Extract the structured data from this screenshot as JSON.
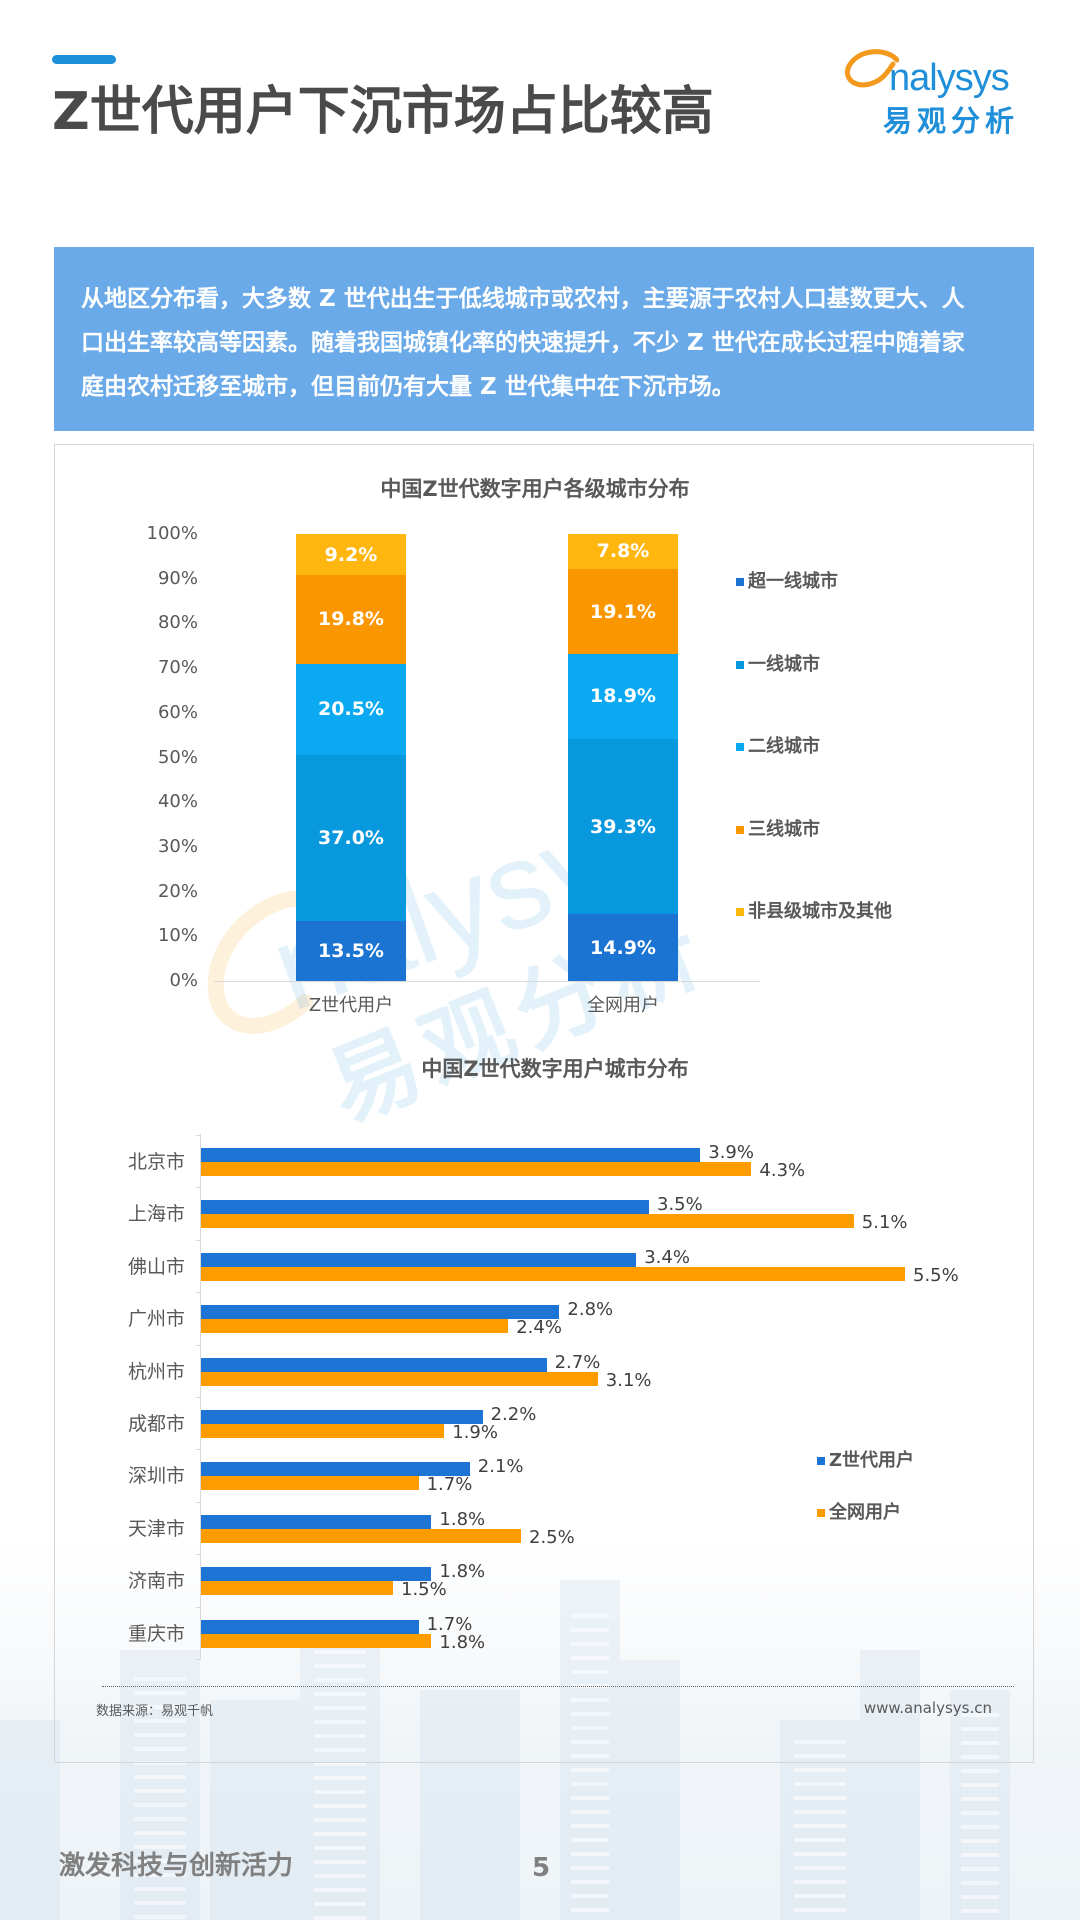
{
  "header": {
    "title": "Z世代用户下沉市场占比较高",
    "accent_color": "#1E8FDA"
  },
  "logo": {
    "en": "nalysys",
    "cn": "易观分析",
    "brand_color": "#1E8FD8",
    "swoosh_color": "#F39A1E"
  },
  "intro": {
    "background_color": "#6BAAE8",
    "lines": [
      "从地区分布看，大多数 Z 世代出生于低线城市或农村，主要源于农村人口基数更大、人",
      "口出生率较高等因素。随着我国城镇化率的快速提升，不少 Z 世代在成长过程中随着家",
      "庭由农村迁移至城市，但目前仍有大量 Z 世代集中在下沉市场。"
    ]
  },
  "chart_data": [
    {
      "type": "bar",
      "stacked": true,
      "orientation": "vertical",
      "title": "中国Z世代数字用户各级城市分布",
      "xlabel": "",
      "ylabel": "",
      "categories": [
        "Z世代用户",
        "全网用户"
      ],
      "series": [
        {
          "name": "超一线城市",
          "values": [
            13.5,
            14.9
          ],
          "color": "#1C74D2"
        },
        {
          "name": "一线城市",
          "values": [
            37.0,
            39.3
          ],
          "color": "#0898DD"
        },
        {
          "name": "二线城市",
          "values": [
            20.5,
            18.9
          ],
          "color": "#0AA9F1"
        },
        {
          "name": "三线城市",
          "values": [
            19.8,
            19.1
          ],
          "color": "#FA9600"
        },
        {
          "name": "非县级城市及其他",
          "values": [
            9.2,
            7.8
          ],
          "color": "#FFB60F"
        }
      ],
      "yticks": [
        "0%",
        "10%",
        "20%",
        "30%",
        "40%",
        "50%",
        "60%",
        "70%",
        "80%",
        "90%",
        "100%"
      ],
      "ylim": [
        0,
        100
      ],
      "unit": "%",
      "grid": false,
      "legend_position": "right"
    },
    {
      "type": "bar",
      "stacked": false,
      "orientation": "horizontal",
      "title": "中国Z世代数字用户城市分布",
      "xlabel": "",
      "ylabel": "",
      "categories": [
        "北京市",
        "上海市",
        "佛山市",
        "广州市",
        "杭州市",
        "成都市",
        "深圳市",
        "天津市",
        "济南市",
        "重庆市"
      ],
      "series": [
        {
          "name": "Z世代用户",
          "values": [
            3.9,
            3.5,
            3.4,
            2.8,
            2.7,
            2.2,
            2.1,
            1.8,
            1.8,
            1.7
          ],
          "color": "#1E74D4"
        },
        {
          "name": "全网用户",
          "values": [
            4.3,
            5.1,
            5.5,
            2.4,
            3.1,
            1.9,
            1.7,
            2.5,
            1.5,
            1.8
          ],
          "color": "#FF9C00"
        }
      ],
      "unit": "%",
      "grid": false,
      "legend_position": "right"
    }
  ],
  "source": {
    "label": "数据来源：易观千帆",
    "url": "www.analysys.cn"
  },
  "watermark": {
    "en": "nalysys",
    "cn": "易观分析"
  },
  "footer": {
    "slogan": "激发科技与创新活力",
    "page_number": "5"
  }
}
